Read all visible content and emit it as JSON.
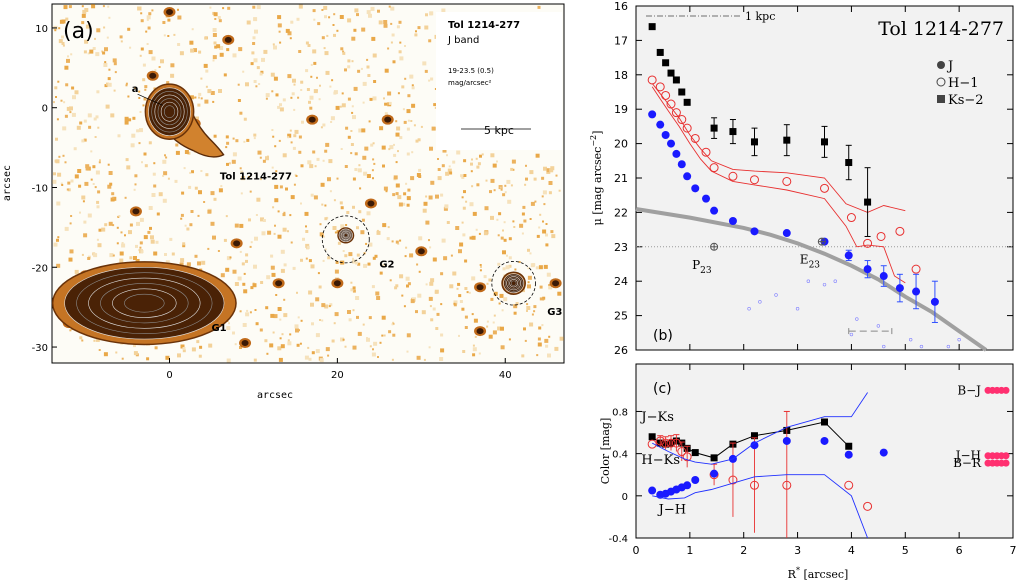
{
  "chart_data": [
    {
      "type": "image",
      "panel_label": "(a)",
      "object_name": "Tol 1214-277",
      "band": "J band",
      "range_line": "19-23.5 (0.5)",
      "unit_line": "mag/arcsec²",
      "scale_bar": "5 kpc",
      "xlabel": "arcsec",
      "ylabel": "arcsec",
      "x_ticks": [
        "0",
        "20",
        "40"
      ],
      "y_ticks": [
        "10",
        "0",
        "-10",
        "-20",
        "-30"
      ],
      "xlim": [
        -14,
        47
      ],
      "ylim": [
        -32,
        13
      ],
      "annotations": [
        {
          "text": "a",
          "x": -4.5,
          "y": 2
        },
        {
          "text": "Tol 1214-277",
          "x": 6,
          "y": -9
        },
        {
          "text": "G1",
          "x": 5,
          "y": -28
        },
        {
          "text": "G2",
          "x": 25,
          "y": -20
        },
        {
          "text": "G3",
          "x": 45,
          "y": -26
        }
      ],
      "sources": [
        {
          "name": "G1",
          "x": -3,
          "y": -24.5,
          "rx": 9.5,
          "ry": 4.5
        },
        {
          "name": "Tol 1214-277",
          "x": 0,
          "y": -0.5,
          "rx": 2.5,
          "ry": 3
        },
        {
          "name": "G2",
          "x": 21,
          "y": -16,
          "rx": 0.8,
          "ry": 0.8
        },
        {
          "name": "G3",
          "x": 41,
          "y": -22,
          "rx": 1.2,
          "ry": 1.2
        }
      ],
      "circles": [
        {
          "name": "G2",
          "x": 21,
          "y": -16.5,
          "r": 2.8
        },
        {
          "name": "G3",
          "x": 41,
          "y": -22,
          "r": 2.6
        }
      ],
      "colors": {
        "background": "#fdfcf6",
        "speckle": "#ecb25e",
        "contour_dark": "#4a2206",
        "contour_mid": "#8a4a12"
      }
    },
    {
      "type": "scatter",
      "panel_label": "(b)",
      "title": "Tol 1214-277",
      "ylabel": "μ [mag arcsec⁻²]",
      "ylabel_parts": {
        "base": "μ [mag arcsec",
        "sup": "−2",
        "end": "]"
      },
      "xlim": [
        0,
        7
      ],
      "ylim": [
        26,
        16
      ],
      "y_ticks": [
        16,
        17,
        18,
        19,
        20,
        21,
        22,
        23,
        24,
        25,
        26
      ],
      "scale_label": "1 kpc",
      "legend": [
        {
          "label": "J",
          "marker": "filled-circle"
        },
        {
          "label": "H−1",
          "marker": "open-circle"
        },
        {
          "label": "Ks−2",
          "marker": "filled-square"
        }
      ],
      "ref_labels": [
        {
          "base": "P",
          "sub": "23",
          "x": 1.45,
          "y": 23.0
        },
        {
          "base": "E",
          "sub": "23",
          "x": 3.45,
          "y": 22.85
        }
      ],
      "series": [
        {
          "name": "J",
          "color": "#1a1aff",
          "points": [
            [
              0.3,
              19.15
            ],
            [
              0.45,
              19.45
            ],
            [
              0.55,
              19.75
            ],
            [
              0.65,
              20.0
            ],
            [
              0.75,
              20.3
            ],
            [
              0.85,
              20.6
            ],
            [
              0.95,
              20.95
            ],
            [
              1.1,
              21.3
            ],
            [
              1.3,
              21.6
            ],
            [
              1.45,
              21.95
            ],
            [
              1.8,
              22.25
            ],
            [
              2.2,
              22.55
            ],
            [
              2.8,
              22.6
            ],
            [
              3.5,
              22.85
            ],
            [
              3.95,
              23.25
            ],
            [
              4.3,
              23.65
            ],
            [
              4.6,
              23.85
            ],
            [
              4.9,
              24.2
            ],
            [
              5.2,
              24.3
            ],
            [
              5.55,
              24.6
            ]
          ],
          "err_from_index": 14,
          "err": [
            0.15,
            0.25,
            0.3,
            0.4,
            0.5,
            0.6
          ]
        },
        {
          "name": "H−1",
          "color": "#e83030",
          "points": [
            [
              0.3,
              18.15
            ],
            [
              0.45,
              18.35
            ],
            [
              0.55,
              18.6
            ],
            [
              0.65,
              18.85
            ],
            [
              0.75,
              19.1
            ],
            [
              0.85,
              19.3
            ],
            [
              0.95,
              19.55
            ],
            [
              1.1,
              19.85
            ],
            [
              1.3,
              20.25
            ],
            [
              1.45,
              20.7
            ],
            [
              1.8,
              20.95
            ],
            [
              2.2,
              21.05
            ],
            [
              2.8,
              21.1
            ],
            [
              3.5,
              21.3
            ],
            [
              4.0,
              22.15
            ],
            [
              4.3,
              22.9
            ],
            [
              4.55,
              22.7
            ],
            [
              4.9,
              22.55
            ],
            [
              5.2,
              23.65
            ]
          ]
        },
        {
          "name": "Ks−2",
          "color": "#000000",
          "points": [
            [
              0.3,
              16.6
            ],
            [
              0.45,
              17.35
            ],
            [
              0.55,
              17.65
            ],
            [
              0.65,
              17.95
            ],
            [
              0.75,
              18.15
            ],
            [
              0.85,
              18.5
            ],
            [
              0.95,
              18.8
            ],
            [
              1.45,
              19.55
            ],
            [
              1.8,
              19.65
            ],
            [
              2.2,
              19.95
            ],
            [
              2.8,
              19.9
            ],
            [
              3.5,
              19.95
            ],
            [
              3.95,
              20.55
            ],
            [
              4.3,
              21.7
            ]
          ],
          "err_from_index": 7,
          "err": [
            0.3,
            0.35,
            0.4,
            0.45,
            0.45,
            0.5,
            1.0,
            2.4
          ]
        }
      ],
      "model_curve": {
        "name": "Sérsic fit",
        "color": "#a0a0a0",
        "points": [
          [
            0,
            21.9
          ],
          [
            1,
            22.15
          ],
          [
            2,
            22.45
          ],
          [
            2.5,
            22.65
          ],
          [
            3,
            22.9
          ],
          [
            3.5,
            23.2
          ],
          [
            4,
            23.55
          ],
          [
            4.5,
            23.95
          ],
          [
            5,
            24.45
          ],
          [
            5.5,
            24.9
          ],
          [
            6,
            25.45
          ],
          [
            6.5,
            26.0
          ]
        ]
      },
      "envelopes": [
        [
          [
            0.3,
            18.25
          ],
          [
            0.45,
            18.55
          ],
          [
            0.6,
            18.85
          ],
          [
            0.8,
            19.25
          ],
          [
            1.0,
            19.75
          ],
          [
            1.2,
            20.15
          ],
          [
            1.4,
            20.5
          ],
          [
            1.8,
            20.75
          ],
          [
            2.2,
            20.8
          ],
          [
            2.8,
            20.85
          ],
          [
            3.5,
            21.0
          ],
          [
            3.9,
            21.75
          ],
          [
            4.3,
            22.0
          ],
          [
            4.6,
            21.8
          ],
          [
            5.0,
            21.95
          ]
        ],
        [
          [
            0.3,
            18.35
          ],
          [
            0.45,
            18.7
          ],
          [
            0.6,
            19.05
          ],
          [
            0.8,
            19.5
          ],
          [
            1.0,
            20.0
          ],
          [
            1.2,
            20.45
          ],
          [
            1.4,
            20.8
          ],
          [
            1.8,
            21.1
          ],
          [
            2.2,
            21.2
          ],
          [
            2.8,
            21.35
          ],
          [
            3.5,
            21.6
          ],
          [
            3.9,
            22.4
          ],
          [
            4.1,
            23.0
          ],
          [
            4.3,
            22.95
          ],
          [
            4.6,
            23.0
          ],
          [
            4.8,
            23.85
          ],
          [
            5.0,
            24.05
          ]
        ]
      ],
      "hline": 23.0,
      "dashed_segment": {
        "x": [
          3.95,
          4.75
        ],
        "y": 25.45
      },
      "faint_points": [
        [
          3.2,
          24.0
        ],
        [
          3.5,
          24.1
        ],
        [
          3.7,
          24.0
        ],
        [
          2.6,
          24.4
        ],
        [
          2.3,
          24.6
        ],
        [
          3.0,
          24.8
        ],
        [
          2.1,
          24.8
        ],
        [
          4.5,
          25.3
        ],
        [
          4.1,
          25.1
        ],
        [
          4.0,
          25.55
        ],
        [
          5.1,
          25.7
        ],
        [
          5.3,
          25.9
        ],
        [
          5.8,
          25.9
        ],
        [
          6.0,
          25.7
        ],
        [
          4.6,
          25.9
        ]
      ],
      "colors": {
        "background": "#f2f2f2"
      }
    },
    {
      "type": "scatter",
      "panel_label": "(c)",
      "xlabel": "R* [arcsec]",
      "xlabel_parts": {
        "base": "R",
        "sup": "*",
        "end": " [arcsec]"
      },
      "ylabel": "Color [mag]",
      "xlim": [
        0,
        7
      ],
      "ylim": [
        -0.4,
        1.25
      ],
      "x_ticks": [
        0,
        1,
        2,
        3,
        4,
        5,
        6,
        7
      ],
      "y_ticks": [
        -0.4,
        0,
        0.4,
        0.8
      ],
      "series_labels": [
        {
          "text": "J−Ks",
          "x": 0.1,
          "y": 0.71
        },
        {
          "text": "H−Ks",
          "x": 0.1,
          "y": 0.3
        },
        {
          "text": "J−H",
          "x": 0.42,
          "y": -0.17
        }
      ],
      "reference_labels": [
        {
          "text": "B−J",
          "y": 1.0
        },
        {
          "text": "J−H",
          "y": 0.38
        },
        {
          "text": "B−R",
          "y": 0.31
        }
      ],
      "series": [
        {
          "name": "J−Ks",
          "color": "#000000",
          "points": [
            [
              0.3,
              0.56
            ],
            [
              0.45,
              0.5
            ],
            [
              0.55,
              0.49
            ],
            [
              0.65,
              0.5
            ],
            [
              0.75,
              0.52
            ],
            [
              0.85,
              0.5
            ],
            [
              0.95,
              0.45
            ],
            [
              1.1,
              0.41
            ],
            [
              1.45,
              0.36
            ],
            [
              1.8,
              0.49
            ],
            [
              2.2,
              0.57
            ],
            [
              2.8,
              0.62
            ],
            [
              3.5,
              0.7
            ],
            [
              3.95,
              0.47
            ]
          ]
        },
        {
          "name": "H−Ks",
          "color": "#e83030",
          "points": [
            [
              0.3,
              0.49
            ],
            [
              0.45,
              0.52
            ],
            [
              0.55,
              0.5
            ],
            [
              0.65,
              0.5
            ],
            [
              0.75,
              0.5
            ],
            [
              0.85,
              0.42
            ],
            [
              0.95,
              0.37
            ],
            [
              1.45,
              0.2
            ],
            [
              1.8,
              0.15
            ],
            [
              2.2,
              0.1
            ],
            [
              2.8,
              0.1
            ],
            [
              3.95,
              0.1
            ],
            [
              4.3,
              -0.1
            ]
          ],
          "err_from_index": 1,
          "err": [
            0.05,
            0.06,
            0.07,
            0.08,
            0.09,
            0.1,
            0.1,
            0.35,
            0.45,
            0.7
          ]
        },
        {
          "name": "J−H",
          "color": "#1a1aff",
          "points": [
            [
              0.3,
              0.05
            ],
            [
              0.45,
              0.01
            ],
            [
              0.55,
              0.02
            ],
            [
              0.65,
              0.04
            ],
            [
              0.75,
              0.06
            ],
            [
              0.85,
              0.08
            ],
            [
              0.95,
              0.1
            ],
            [
              1.1,
              0.15
            ],
            [
              1.45,
              0.21
            ],
            [
              1.8,
              0.35
            ],
            [
              2.2,
              0.48
            ],
            [
              2.8,
              0.52
            ],
            [
              3.5,
              0.52
            ],
            [
              3.95,
              0.39
            ],
            [
              4.6,
              0.41
            ]
          ]
        },
        {
          "name": "J−Ks band",
          "color": "#2030ff",
          "style": "thin-line",
          "points": [
            [
              0.3,
              0.5
            ],
            [
              0.6,
              0.42
            ],
            [
              0.9,
              0.35
            ],
            [
              1.1,
              0.32
            ],
            [
              1.4,
              0.3
            ],
            [
              1.8,
              0.35
            ],
            [
              2.2,
              0.5
            ],
            [
              2.8,
              0.65
            ],
            [
              3.5,
              0.75
            ],
            [
              4.0,
              0.75
            ],
            [
              4.3,
              0.98
            ]
          ]
        },
        {
          "name": "J−H band",
          "color": "#2030ff",
          "style": "thin-line",
          "points": [
            [
              0.3,
              0.0
            ],
            [
              0.6,
              -0.03
            ],
            [
              0.9,
              -0.02
            ],
            [
              1.1,
              0.03
            ],
            [
              1.4,
              0.06
            ],
            [
              1.8,
              0.12
            ],
            [
              2.2,
              0.18
            ],
            [
              2.8,
              0.2
            ],
            [
              3.5,
              0.2
            ],
            [
              4.0,
              0.0
            ],
            [
              4.3,
              -0.4
            ]
          ]
        }
      ],
      "reference_marks": [
        {
          "y": 1.0,
          "color": "#ff3070"
        },
        {
          "y": 0.38,
          "color": "#ff3070"
        },
        {
          "y": 0.31,
          "color": "#ff3070"
        }
      ],
      "colors": {
        "background": "#f2f2f2"
      }
    }
  ]
}
